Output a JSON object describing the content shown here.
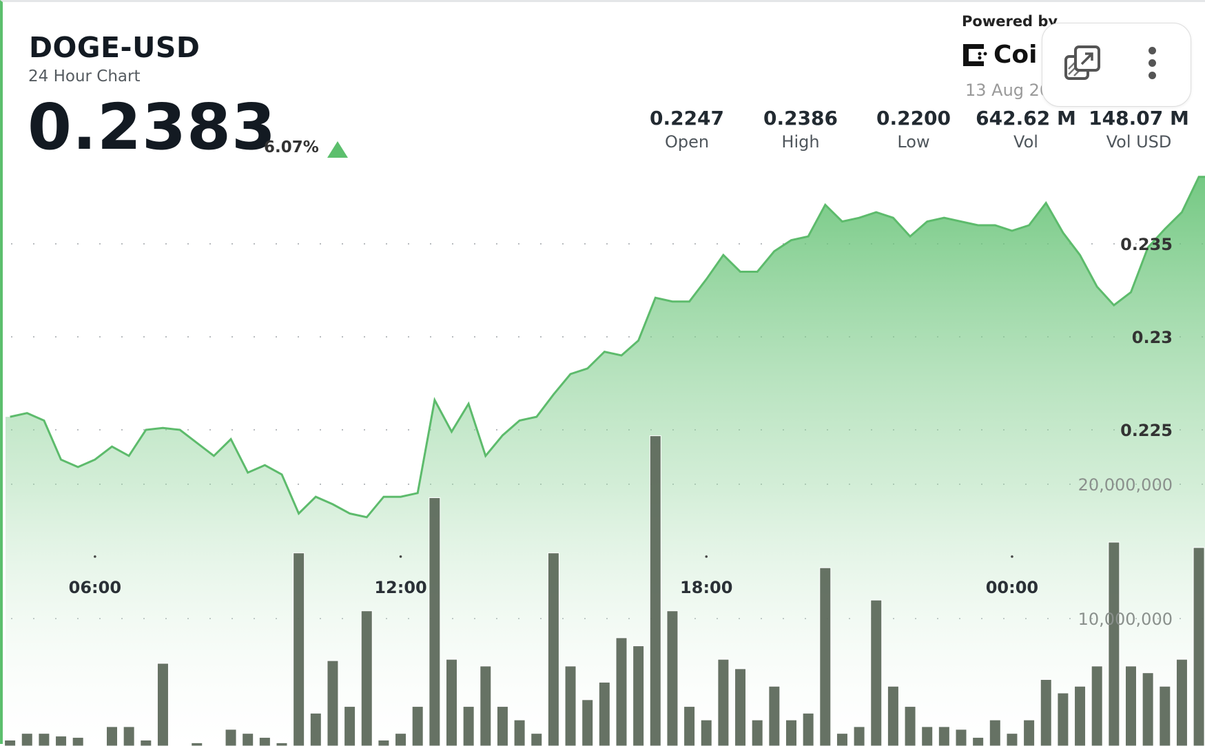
{
  "header": {
    "title": "DOGE-USD",
    "subtitle": "24 Hour Chart",
    "price": "0.2383",
    "change": "6.07%",
    "change_direction": "up",
    "powered_by": "Powered by",
    "brand": "Coi",
    "date": "13 Aug 20"
  },
  "stats": [
    {
      "value": "0.2247",
      "label": "Open"
    },
    {
      "value": "0.2386",
      "label": "High"
    },
    {
      "value": "0.2200",
      "label": "Low"
    },
    {
      "value": "642.62 M",
      "label": "Vol"
    },
    {
      "value": "148.07 M",
      "label": "Vol USD"
    }
  ],
  "toolbar": {
    "icons": [
      "external-link-icon",
      "more-vertical-icon"
    ]
  },
  "colors": {
    "up": "#5cbf6d",
    "line": "#5dbb6c",
    "volume": "#5e6a5c"
  },
  "chart_data": {
    "type": "area",
    "grid": "horizontal-dotted",
    "x_ticks": [
      "06:00",
      "12:00",
      "18:00",
      "00:00"
    ],
    "price_ticks": [
      "0.235",
      "0.23",
      "0.225"
    ],
    "price_ylim": [
      0.2175,
      0.2425
    ],
    "volume_ticks": [
      "20,000,000",
      "10,000,000"
    ],
    "volume_ylim": [
      0,
      22500000
    ],
    "x": [
      "04:20",
      "04:40",
      "05:00",
      "05:20",
      "05:40",
      "06:00",
      "06:20",
      "06:40",
      "07:00",
      "07:20",
      "07:40",
      "08:00",
      "08:20",
      "08:40",
      "09:00",
      "09:20",
      "09:40",
      "10:00",
      "10:20",
      "10:40",
      "11:00",
      "11:20",
      "11:40",
      "12:00",
      "12:20",
      "12:40",
      "13:00",
      "13:20",
      "13:40",
      "14:00",
      "14:20",
      "14:40",
      "15:00",
      "15:20",
      "15:40",
      "16:00",
      "16:20",
      "16:40",
      "17:00",
      "17:20",
      "17:40",
      "18:00",
      "18:20",
      "18:40",
      "19:00",
      "19:20",
      "19:40",
      "20:00",
      "20:20",
      "20:40",
      "21:00",
      "21:20",
      "21:40",
      "22:00",
      "22:20",
      "22:40",
      "23:00",
      "23:20",
      "23:40",
      "00:00",
      "00:20",
      "00:40",
      "01:00",
      "01:20",
      "01:40",
      "02:00",
      "02:20",
      "02:40",
      "03:00",
      "03:20",
      "03:40"
    ],
    "price": [
      0.2257,
      0.2259,
      0.2255,
      0.2234,
      0.223,
      0.2234,
      0.2241,
      0.2236,
      0.225,
      0.2251,
      0.225,
      0.2243,
      0.2236,
      0.2245,
      0.2227,
      0.2231,
      0.2226,
      0.2205,
      0.2214,
      0.221,
      0.2205,
      0.2203,
      0.2214,
      0.2214,
      0.2216,
      0.2266,
      0.2249,
      0.2264,
      0.2236,
      0.2247,
      0.2255,
      0.2257,
      0.2269,
      0.228,
      0.2283,
      0.2292,
      0.229,
      0.2298,
      0.2321,
      0.2319,
      0.2319,
      0.2331,
      0.2344,
      0.2335,
      0.2335,
      0.2346,
      0.2352,
      0.2354,
      0.2371,
      0.2362,
      0.2364,
      0.2367,
      0.2364,
      0.2354,
      0.2362,
      0.2364,
      0.2362,
      0.236,
      0.236,
      0.2357,
      0.236,
      0.2372,
      0.2356,
      0.2344,
      0.2327,
      0.2317,
      0.2324,
      0.2348,
      0.2358,
      0.2367,
      0.2386
    ],
    "volume": [
      1000000,
      1500000,
      1500000,
      1300000,
      1200000,
      500000,
      2000000,
      2000000,
      1000000,
      6700000,
      300000,
      800000,
      500000,
      1800000,
      1500000,
      1200000,
      800000,
      14900000,
      3000000,
      6900000,
      3500000,
      10600000,
      1000000,
      1500000,
      3500000,
      19000000,
      7000000,
      3500000,
      6500000,
      3500000,
      2500000,
      1500000,
      14900000,
      6500000,
      4000000,
      5300000,
      8600000,
      8000000,
      23600000,
      10600000,
      3500000,
      2500000,
      7000000,
      6300000,
      2500000,
      5000000,
      2500000,
      3000000,
      13800000,
      1500000,
      2000000,
      11400000,
      5000000,
      3500000,
      2000000,
      2000000,
      1800000,
      1200000,
      2500000,
      1500000,
      2500000,
      5500000,
      4500000,
      5000000,
      6500000,
      15700000,
      6500000,
      6000000,
      5000000,
      7000000,
      15300000
    ]
  }
}
